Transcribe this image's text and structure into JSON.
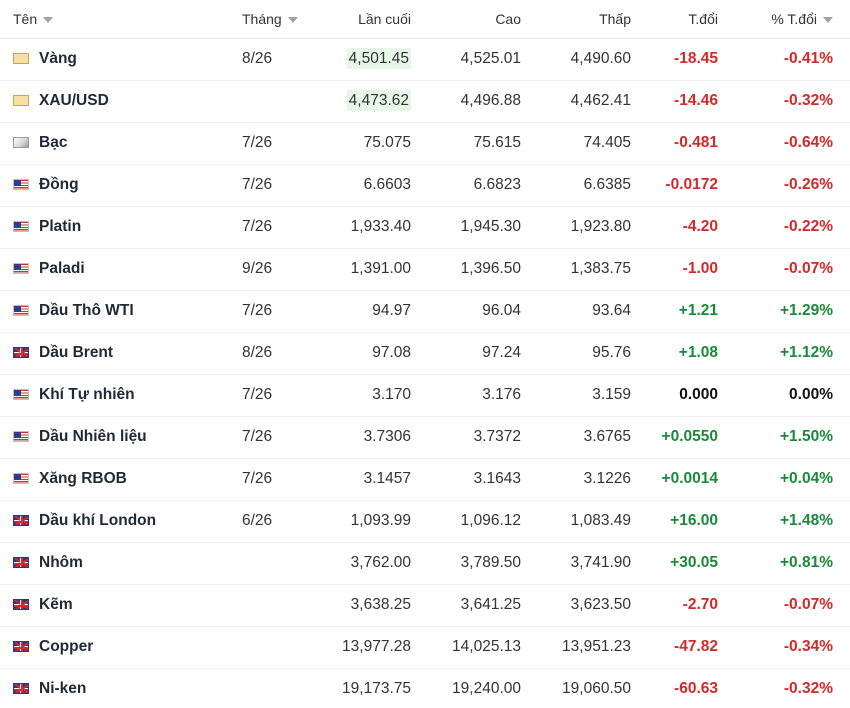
{
  "header": {
    "name": "Tên",
    "month": "Tháng",
    "last": "Lần cuối",
    "high": "Cao",
    "low": "Thấp",
    "change": "T.đổi",
    "change_pct": "% T.đổi"
  },
  "rows": [
    {
      "name": "Vàng",
      "flag": "gold-icon",
      "month": "8/26",
      "last": "4,501.45",
      "high": "4,525.01",
      "low": "4,490.60",
      "change": "-18.45",
      "change_pct": "-0.41%",
      "dir": "neg",
      "highlight": true
    },
    {
      "name": "XAU/USD",
      "flag": "gold-icon",
      "month": "",
      "last": "4,473.62",
      "high": "4,496.88",
      "low": "4,462.41",
      "change": "-14.46",
      "change_pct": "-0.32%",
      "dir": "neg",
      "highlight": true
    },
    {
      "name": "Bạc",
      "flag": "silver-icon",
      "month": "7/26",
      "last": "75.075",
      "high": "75.615",
      "low": "74.405",
      "change": "-0.481",
      "change_pct": "-0.64%",
      "dir": "neg",
      "highlight": false
    },
    {
      "name": "Đồng",
      "flag": "us-flag-icon",
      "month": "7/26",
      "last": "6.6603",
      "high": "6.6823",
      "low": "6.6385",
      "change": "-0.0172",
      "change_pct": "-0.26%",
      "dir": "neg",
      "highlight": false
    },
    {
      "name": "Platin",
      "flag": "us-flag-icon",
      "month": "7/26",
      "last": "1,933.40",
      "high": "1,945.30",
      "low": "1,923.80",
      "change": "-4.20",
      "change_pct": "-0.22%",
      "dir": "neg",
      "highlight": false
    },
    {
      "name": "Paladi",
      "flag": "us-flag-icon",
      "month": "9/26",
      "last": "1,391.00",
      "high": "1,396.50",
      "low": "1,383.75",
      "change": "-1.00",
      "change_pct": "-0.07%",
      "dir": "neg",
      "highlight": false
    },
    {
      "name": "Dầu Thô WTI",
      "flag": "us-flag-icon",
      "month": "7/26",
      "last": "94.97",
      "high": "96.04",
      "low": "93.64",
      "change": "+1.21",
      "change_pct": "+1.29%",
      "dir": "pos",
      "highlight": false
    },
    {
      "name": "Dầu Brent",
      "flag": "uk-flag-icon",
      "month": "8/26",
      "last": "97.08",
      "high": "97.24",
      "low": "95.76",
      "change": "+1.08",
      "change_pct": "+1.12%",
      "dir": "pos",
      "highlight": false
    },
    {
      "name": "Khí Tự nhiên",
      "flag": "us-flag-icon",
      "month": "7/26",
      "last": "3.170",
      "high": "3.176",
      "low": "3.159",
      "change": "0.000",
      "change_pct": "0.00%",
      "dir": "neu",
      "highlight": false
    },
    {
      "name": "Dầu Nhiên liệu",
      "flag": "us-flag-icon",
      "month": "7/26",
      "last": "3.7306",
      "high": "3.7372",
      "low": "3.6765",
      "change": "+0.0550",
      "change_pct": "+1.50%",
      "dir": "pos",
      "highlight": false
    },
    {
      "name": "Xăng RBOB",
      "flag": "us-flag-icon",
      "month": "7/26",
      "last": "3.1457",
      "high": "3.1643",
      "low": "3.1226",
      "change": "+0.0014",
      "change_pct": "+0.04%",
      "dir": "pos",
      "highlight": false
    },
    {
      "name": "Dầu khí London",
      "flag": "uk-flag-icon",
      "month": "6/26",
      "last": "1,093.99",
      "high": "1,096.12",
      "low": "1,083.49",
      "change": "+16.00",
      "change_pct": "+1.48%",
      "dir": "pos",
      "highlight": false
    },
    {
      "name": "Nhôm",
      "flag": "uk-flag-icon",
      "month": "",
      "last": "3,762.00",
      "high": "3,789.50",
      "low": "3,741.90",
      "change": "+30.05",
      "change_pct": "+0.81%",
      "dir": "pos",
      "highlight": false
    },
    {
      "name": "Kẽm",
      "flag": "uk-flag-icon",
      "month": "",
      "last": "3,638.25",
      "high": "3,641.25",
      "low": "3,623.50",
      "change": "-2.70",
      "change_pct": "-0.07%",
      "dir": "neg",
      "highlight": false
    },
    {
      "name": "Copper",
      "flag": "uk-flag-icon",
      "month": "",
      "last": "13,977.28",
      "high": "14,025.13",
      "low": "13,951.23",
      "change": "-47.82",
      "change_pct": "-0.34%",
      "dir": "neg",
      "highlight": false
    },
    {
      "name": "Ni-ken",
      "flag": "uk-flag-icon",
      "month": "",
      "last": "19,173.75",
      "high": "19,240.00",
      "low": "19,060.50",
      "change": "-60.63",
      "change_pct": "-0.32%",
      "dir": "neg",
      "highlight": false
    }
  ],
  "colors": {
    "negative": "#d62828",
    "positive": "#1a8a3a",
    "highlight_bg": "#e6f6e9"
  }
}
